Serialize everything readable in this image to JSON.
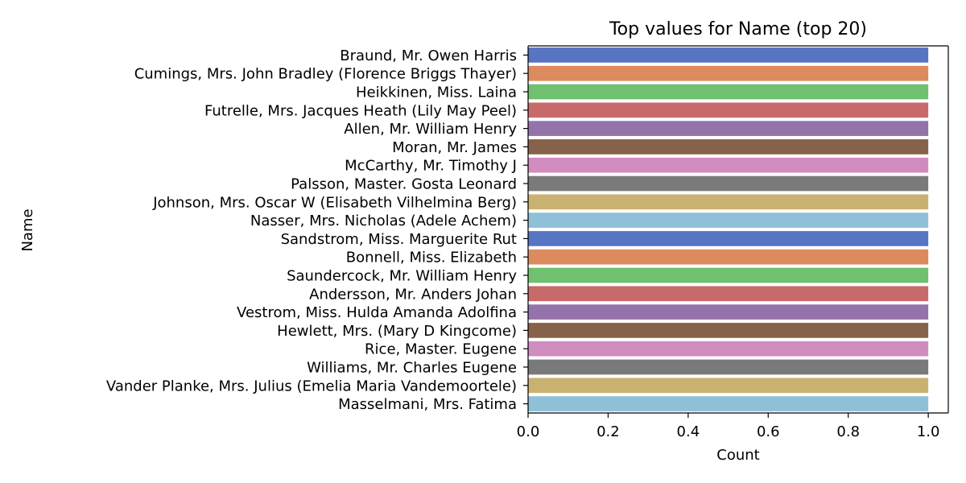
{
  "chart_data": {
    "type": "bar",
    "orientation": "horizontal",
    "title": "Top values for Name (top 20)",
    "xlabel": "Count",
    "ylabel": "Name",
    "xlim": [
      0,
      1.05
    ],
    "xticks": [
      "0.0",
      "0.2",
      "0.4",
      "0.6",
      "0.8",
      "1.0"
    ],
    "grid": false,
    "categories": [
      "Braund, Mr. Owen Harris",
      "Cumings, Mrs. John Bradley (Florence Briggs Thayer)",
      "Heikkinen, Miss. Laina",
      "Futrelle, Mrs. Jacques Heath (Lily May Peel)",
      "Allen, Mr. William Henry",
      "Moran, Mr. James",
      "McCarthy, Mr. Timothy J",
      "Palsson, Master. Gosta Leonard",
      "Johnson, Mrs. Oscar W (Elisabeth Vilhelmina Berg)",
      "Nasser, Mrs. Nicholas (Adele Achem)",
      "Sandstrom, Miss. Marguerite Rut",
      "Bonnell, Miss. Elizabeth",
      "Saundercock, Mr. William Henry",
      "Andersson, Mr. Anders Johan",
      "Vestrom, Miss. Hulda Amanda Adolfina",
      "Hewlett, Mrs. (Mary D Kingcome) ",
      "Rice, Master. Eugene",
      "Williams, Mr. Charles Eugene",
      "Vander Planke, Mrs. Julius (Emelia Maria Vandemoortele)",
      "Masselmani, Mrs. Fatima"
    ],
    "values": [
      1,
      1,
      1,
      1,
      1,
      1,
      1,
      1,
      1,
      1,
      1,
      1,
      1,
      1,
      1,
      1,
      1,
      1,
      1,
      1
    ],
    "palette": [
      "#5875c3",
      "#dd8a5f",
      "#6fc06f",
      "#c96a6a",
      "#9373aa",
      "#86624b",
      "#d18cbf",
      "#7a7a7a",
      "#c9b26f",
      "#8ec0d8"
    ]
  }
}
